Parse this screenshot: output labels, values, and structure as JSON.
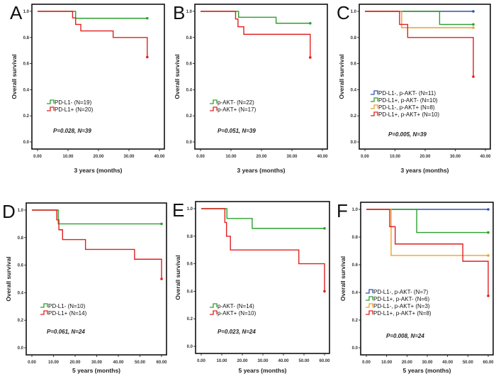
{
  "chart_data": [
    {
      "type": "line",
      "panel": "A",
      "title": "",
      "xlabel": "3 years (months)",
      "ylabel": "Overall survival",
      "xlim": [
        0,
        40
      ],
      "ylim": [
        0,
        1
      ],
      "xticks": [
        "0.00",
        "10.00",
        "20.00",
        "30.00",
        "40.00"
      ],
      "yticks": [
        "0.0",
        "0.2",
        "0.4",
        "0.6",
        "0.8",
        "1.0"
      ],
      "annotation": "P=0.028, N=39",
      "legend_position": "center-left",
      "series": [
        {
          "name": "PD-L1- (N=19)",
          "color": "#2ca02c",
          "step_x": [
            0,
            12.5,
            36
          ],
          "step_y": [
            1.0,
            0.947,
            0.947
          ],
          "censor": [
            [
              36,
              0.947
            ]
          ]
        },
        {
          "name": "PD-L1+ (N=20)",
          "color": "#e0201e",
          "step_x": [
            0,
            11.5,
            12.5,
            14.2,
            24.8,
            36
          ],
          "step_y": [
            1.0,
            0.95,
            0.9,
            0.85,
            0.8,
            0.65
          ],
          "censor": [
            [
              36,
              0.65
            ]
          ]
        }
      ]
    },
    {
      "type": "line",
      "panel": "B",
      "title": "",
      "xlabel": "3 years (months)",
      "ylabel": "Overall survival",
      "xlim": [
        0,
        40
      ],
      "ylim": [
        0,
        1
      ],
      "xticks": [
        "0.00",
        "10.00",
        "20.00",
        "30.00",
        "40.00"
      ],
      "yticks": [
        "0.0",
        "0.2",
        "0.4",
        "0.6",
        "0.8",
        "1.0"
      ],
      "annotation": "P=0.051, N=39",
      "legend_position": "center-left",
      "series": [
        {
          "name": "p-AKT- (N=22)",
          "color": "#2ca02c",
          "step_x": [
            0,
            12.5,
            24.8,
            36
          ],
          "step_y": [
            1.0,
            0.955,
            0.909,
            0.909
          ],
          "censor": [
            [
              36,
              0.909
            ]
          ]
        },
        {
          "name": "p-AKT+ (N=17)",
          "color": "#e0201e",
          "step_x": [
            0,
            11.5,
            12.3,
            14.2,
            36
          ],
          "step_y": [
            1.0,
            0.941,
            0.882,
            0.824,
            0.647
          ],
          "censor": [
            [
              36,
              0.647
            ]
          ]
        }
      ]
    },
    {
      "type": "line",
      "panel": "C",
      "title": "",
      "xlabel": "3 years (months)",
      "ylabel": "Overall survival",
      "xlim": [
        0,
        40
      ],
      "ylim": [
        0,
        1
      ],
      "xticks": [
        "0.00",
        "10.00",
        "20.00",
        "30.00",
        "40.00"
      ],
      "yticks": [
        "0.0",
        "0.2",
        "0.4",
        "0.6",
        "0.8",
        "1.0"
      ],
      "annotation": "P=0.005, N=39",
      "legend_position": "center-left",
      "series": [
        {
          "name": "PD-L1-, p-AKT- (N=11)",
          "color": "#3050b0",
          "step_x": [
            0,
            36
          ],
          "step_y": [
            1.0,
            1.0
          ],
          "censor": [
            [
              36,
              1.0
            ]
          ]
        },
        {
          "name": "PD-L1+, p-AKT- (N=10)",
          "color": "#2ca02c",
          "step_x": [
            0,
            24.8,
            36
          ],
          "step_y": [
            1.0,
            0.9,
            0.9
          ],
          "censor": [
            [
              36,
              0.9
            ]
          ]
        },
        {
          "name": "PD-L1-, p-AKT+ (N=8)",
          "color": "#f0a020",
          "step_x": [
            0,
            12.2,
            36
          ],
          "step_y": [
            1.0,
            0.875,
            0.875
          ],
          "censor": [
            [
              36,
              0.875
            ]
          ]
        },
        {
          "name": "PD-L1+, p-AKT+ (N=10)",
          "color": "#e0201e",
          "step_x": [
            0,
            11.5,
            14.2,
            36
          ],
          "step_y": [
            1.0,
            0.9,
            0.8,
            0.5
          ],
          "censor": [
            [
              36,
              0.5
            ]
          ]
        }
      ]
    },
    {
      "type": "line",
      "panel": "D",
      "title": "",
      "xlabel": "5 years (months)",
      "ylabel": "Overall survival",
      "xlim": [
        0,
        60
      ],
      "ylim": [
        0,
        1
      ],
      "xticks": [
        "0.00",
        "10.00",
        "20.00",
        "30.00",
        "40.00",
        "50.00",
        "60.00"
      ],
      "yticks": [
        "0.0",
        "0.2",
        "0.4",
        "0.6",
        "0.8",
        "1.0"
      ],
      "annotation": "P=0.061, N=24",
      "legend_position": "center-left",
      "series": [
        {
          "name": "PD-L1- (N=10)",
          "color": "#2ca02c",
          "step_x": [
            0,
            12.2,
            60
          ],
          "step_y": [
            1.0,
            0.9,
            0.9
          ],
          "censor": [
            [
              60,
              0.9
            ]
          ]
        },
        {
          "name": "PD-L1+ (N=14)",
          "color": "#e0201e",
          "step_x": [
            0,
            11.5,
            12.5,
            13.5,
            14.2,
            24.8,
            47.5,
            60
          ],
          "step_y": [
            1.0,
            0.929,
            0.857,
            0.857,
            0.786,
            0.714,
            0.643,
            0.5
          ],
          "censor": [
            [
              60,
              0.5
            ]
          ]
        }
      ]
    },
    {
      "type": "line",
      "panel": "E",
      "title": "",
      "xlabel": "5 years (months)",
      "ylabel": "Overall survival",
      "xlim": [
        0,
        60
      ],
      "ylim": [
        0,
        1
      ],
      "xticks": [
        "0.00",
        "10.00",
        "20.00",
        "30.00",
        "40.00",
        "50.00",
        "60.00"
      ],
      "yticks": [
        "0.0",
        "0.2",
        "0.4",
        "0.6",
        "0.8",
        "1.0"
      ],
      "annotation": "P=0.023, N=24",
      "legend_position": "center-left",
      "series": [
        {
          "name": "p-AKT- (N=14)",
          "color": "#2ca02c",
          "step_x": [
            0,
            12.5,
            24.8,
            60
          ],
          "step_y": [
            1.0,
            0.929,
            0.857,
            0.857
          ],
          "censor": [
            [
              60,
              0.857
            ]
          ]
        },
        {
          "name": "p-AKT+ (N=10)",
          "color": "#e0201e",
          "step_x": [
            0,
            11.5,
            12.3,
            14.2,
            47.5,
            60
          ],
          "step_y": [
            1.0,
            0.9,
            0.8,
            0.7,
            0.6,
            0.4
          ],
          "censor": [
            [
              60,
              0.4
            ]
          ]
        }
      ]
    },
    {
      "type": "line",
      "panel": "F",
      "title": "",
      "xlabel": "5 years (months)",
      "ylabel": "Overall survival",
      "xlim": [
        0,
        60
      ],
      "ylim": [
        0,
        1
      ],
      "xticks": [
        "0.00",
        "10.00",
        "20.00",
        "30.00",
        "40.00",
        "50.00",
        "60.00"
      ],
      "yticks": [
        "0.0",
        "0.2",
        "0.4",
        "0.6",
        "0.8",
        "1.0"
      ],
      "annotation": "P=0.008, N=24",
      "legend_position": "bottom-left",
      "series": [
        {
          "name": "PD-L1-, p-AKT- (N=7)",
          "color": "#3050b0",
          "step_x": [
            0,
            60
          ],
          "step_y": [
            1.0,
            1.0
          ],
          "censor": [
            [
              60,
              1.0
            ]
          ]
        },
        {
          "name": "PD-L1+, p-AKT- (N=6)",
          "color": "#2ca02c",
          "step_x": [
            0,
            24.8,
            60
          ],
          "step_y": [
            1.0,
            0.833,
            0.833
          ],
          "censor": [
            [
              60,
              0.833
            ]
          ]
        },
        {
          "name": "PD-L1-, p-AKT+ (N=3)",
          "color": "#f0a020",
          "step_x": [
            0,
            12.2,
            60
          ],
          "step_y": [
            1.0,
            0.667,
            0.667
          ],
          "censor": [
            [
              60,
              0.667
            ]
          ]
        },
        {
          "name": "PD-L1+, p-AKT+ (N=8)",
          "color": "#e0201e",
          "step_x": [
            0,
            11.5,
            14.2,
            47.5,
            60
          ],
          "step_y": [
            1.0,
            0.875,
            0.75,
            0.625,
            0.375
          ],
          "censor": [
            [
              60,
              0.375
            ]
          ]
        }
      ]
    }
  ]
}
